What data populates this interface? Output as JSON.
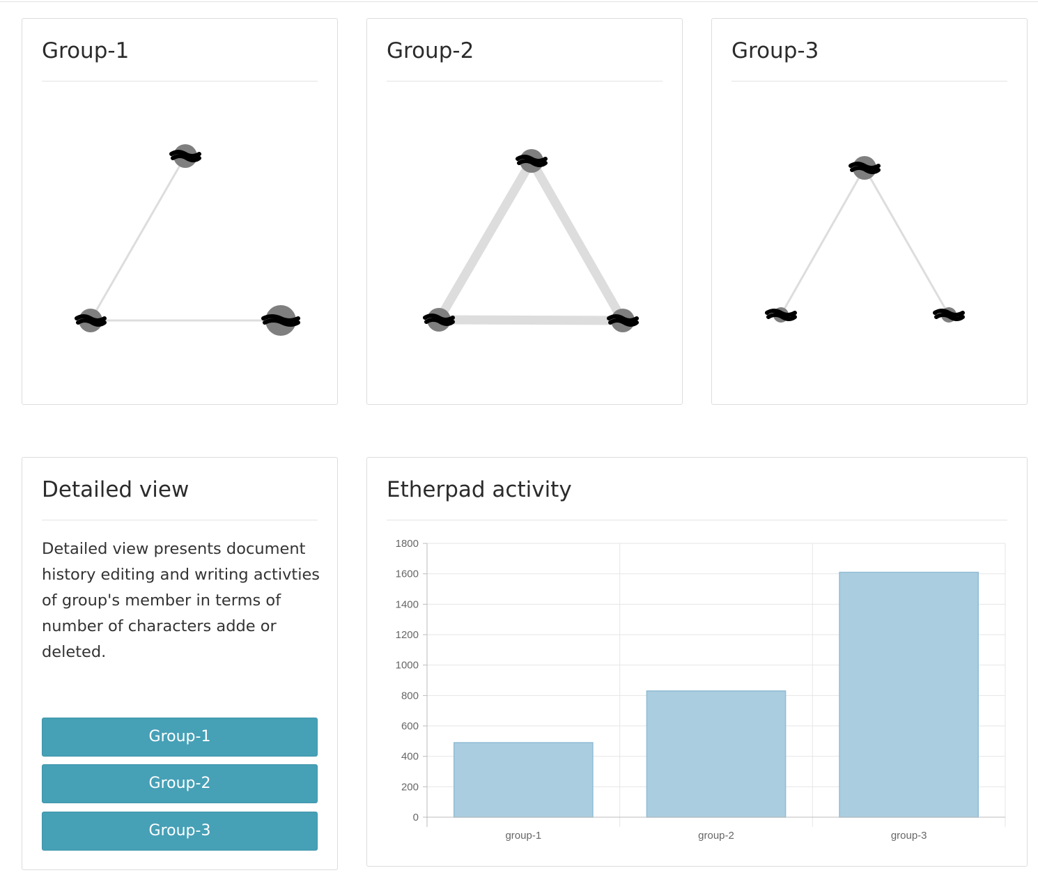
{
  "network_panels": [
    {
      "title": "Group-1",
      "nodes": [
        {
          "id": "top",
          "size": "medium"
        },
        {
          "id": "left",
          "size": "medium"
        },
        {
          "id": "right",
          "size": "large"
        }
      ],
      "edges": [
        {
          "from": "top",
          "to": "left",
          "weight": 1
        },
        {
          "from": "left",
          "to": "right",
          "weight": 1
        }
      ]
    },
    {
      "title": "Group-2",
      "nodes": [
        {
          "id": "top",
          "size": "medium"
        },
        {
          "id": "left",
          "size": "medium"
        },
        {
          "id": "right",
          "size": "medium"
        }
      ],
      "edges": [
        {
          "from": "top",
          "to": "left",
          "weight": 3
        },
        {
          "from": "top",
          "to": "right",
          "weight": 3
        },
        {
          "from": "left",
          "to": "right",
          "weight": 3
        }
      ]
    },
    {
      "title": "Group-3",
      "nodes": [
        {
          "id": "top",
          "size": "medium"
        },
        {
          "id": "left",
          "size": "small"
        },
        {
          "id": "right",
          "size": "small"
        }
      ],
      "edges": [
        {
          "from": "top",
          "to": "left",
          "weight": 1
        },
        {
          "from": "top",
          "to": "right",
          "weight": 1
        }
      ]
    }
  ],
  "detailed_view": {
    "title": "Detailed view",
    "description": "Detailed view presents document history editing and writing activties of group's member in terms of number of characters adde or deleted.",
    "buttons": [
      "Group-1",
      "Group-2",
      "Group-3"
    ]
  },
  "activity": {
    "title": "Etherpad activity"
  },
  "colors": {
    "button": "#46a0b6",
    "bar_fill": "#abcde0",
    "bar_stroke": "#90bcd4",
    "edge": "#dddddd",
    "node": "#7f7f7f"
  },
  "chart_data": {
    "type": "bar",
    "categories": [
      "group-1",
      "group-2",
      "group-3"
    ],
    "values": [
      490,
      830,
      1610
    ],
    "ylim": [
      0,
      1800
    ],
    "yticks": [
      0,
      200,
      400,
      600,
      800,
      1000,
      1200,
      1400,
      1600,
      1800
    ],
    "grid": true,
    "title": "",
    "xlabel": "",
    "ylabel": ""
  }
}
